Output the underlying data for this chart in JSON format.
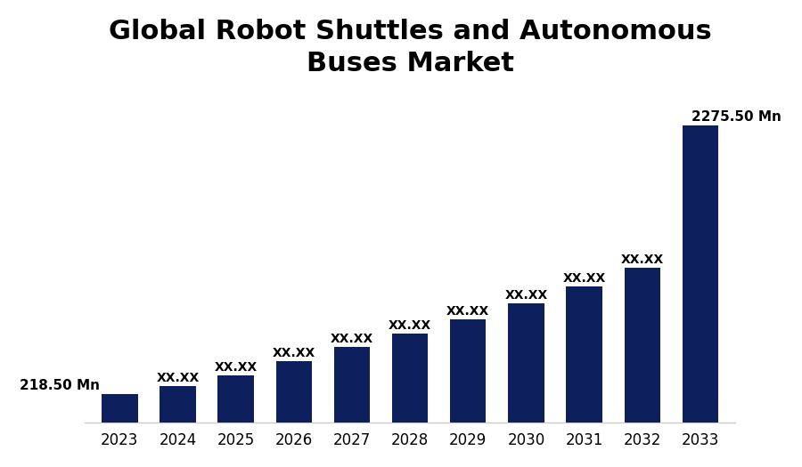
{
  "title": "Global Robot Shuttles and Autonomous\nBuses Market",
  "years": [
    2023,
    2024,
    2025,
    2026,
    2027,
    2028,
    2029,
    2030,
    2031,
    2032,
    2033
  ],
  "values": [
    218.5,
    280,
    360,
    470,
    580,
    680,
    790,
    910,
    1040,
    1185,
    2275.5
  ],
  "bar_color": "#0D1F5C",
  "background_color": "#ffffff",
  "bar_labels": [
    "218.50 Mn",
    "XX.XX",
    "XX.XX",
    "XX.XX",
    "XX.XX",
    "XX.XX",
    "XX.XX",
    "XX.XX",
    "XX.XX",
    "XX.XX",
    "2275.50 Mn"
  ],
  "title_fontsize": 22,
  "label_fontsize": 11,
  "tick_fontsize": 12,
  "ylim": [
    0,
    2550
  ]
}
